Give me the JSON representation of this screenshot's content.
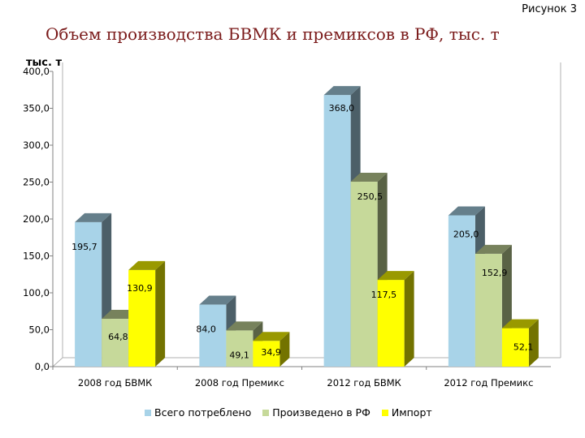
{
  "figure_label": "Рисунок 3",
  "chart_data": {
    "type": "bar",
    "title": "Объем производства БВМК и премиксов в РФ, тыс. т",
    "ylabel": "тыс. т",
    "xlabel": "",
    "ylim": [
      0,
      400
    ],
    "yticks": [
      "0,0",
      "50,0",
      "100,0",
      "150,0",
      "200,0",
      "250,0",
      "300,0",
      "350,0",
      "400,0"
    ],
    "categories": [
      "2008 год БВМК",
      "2008 год Премикс",
      "2012 год БВМК",
      "2012 год Премикс"
    ],
    "series": [
      {
        "name": "Всего потреблено",
        "color": "#a8d3e8",
        "values": [
          195.7,
          84.0,
          368.0,
          205.0
        ],
        "labels": [
          "195,7",
          "84,0",
          "368,0",
          "205,0"
        ]
      },
      {
        "name": "Произведено в РФ",
        "color": "#c6d99a",
        "values": [
          64.8,
          49.1,
          250.5,
          152.9
        ],
        "labels": [
          "64,8",
          "49,1",
          "250,5",
          "152,9"
        ]
      },
      {
        "name": "Импорт",
        "color": "#ffff00",
        "values": [
          130.9,
          34.9,
          117.5,
          52.1
        ],
        "labels": [
          "130,9",
          "34,9",
          "117,5",
          "52,1"
        ]
      }
    ],
    "grid": false,
    "legend_position": "bottom",
    "style": "3d-column"
  }
}
